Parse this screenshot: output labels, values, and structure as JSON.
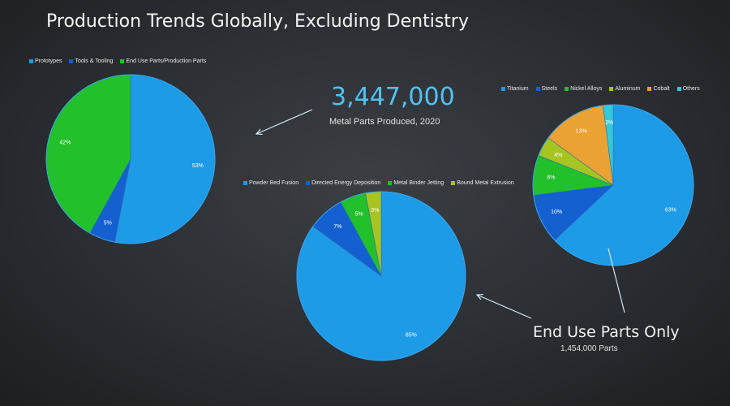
{
  "title": "Production Trends Globally, Excluding Dentistry",
  "headline": {
    "value": "3,447,000",
    "caption": "Metal Parts Produced, 2020"
  },
  "end_use": {
    "label": "End Use Parts Only",
    "count": "1,454,000 Parts"
  },
  "chart_data": [
    {
      "type": "pie",
      "categories": [
        "Prototypes",
        "Tools & Tooling",
        "End Use Parts/Production Parts"
      ],
      "values": [
        53,
        5,
        42
      ],
      "data_labels": [
        "53%",
        "5%",
        "42%"
      ],
      "colors": [
        "#1e9be6",
        "#1560d0",
        "#22c02a"
      ],
      "legend": "top"
    },
    {
      "type": "pie",
      "categories": [
        "Powder Bed Fusion",
        "Directed Energy Deposition",
        "Metal Binder Jetting",
        "Bound Metal Extrusion"
      ],
      "values": [
        85,
        7,
        5,
        3
      ],
      "data_labels": [
        "85%",
        "7%",
        "5%",
        "3%"
      ],
      "colors": [
        "#1e9be6",
        "#1560d0",
        "#22c02a",
        "#a6c520"
      ],
      "legend": "top"
    },
    {
      "type": "pie",
      "categories": [
        "Titanium",
        "Steels",
        "Nickel Alloys",
        "Aluminum",
        "Cobalt",
        "Others"
      ],
      "values": [
        63,
        10,
        8,
        4,
        13,
        2
      ],
      "data_labels": [
        "63%",
        "10%",
        "8%",
        "4%",
        "13%",
        "2%"
      ],
      "colors": [
        "#1e9be6",
        "#1560d0",
        "#22c02a",
        "#a6c520",
        "#eaa232",
        "#35c9d8"
      ],
      "legend": "top"
    }
  ]
}
